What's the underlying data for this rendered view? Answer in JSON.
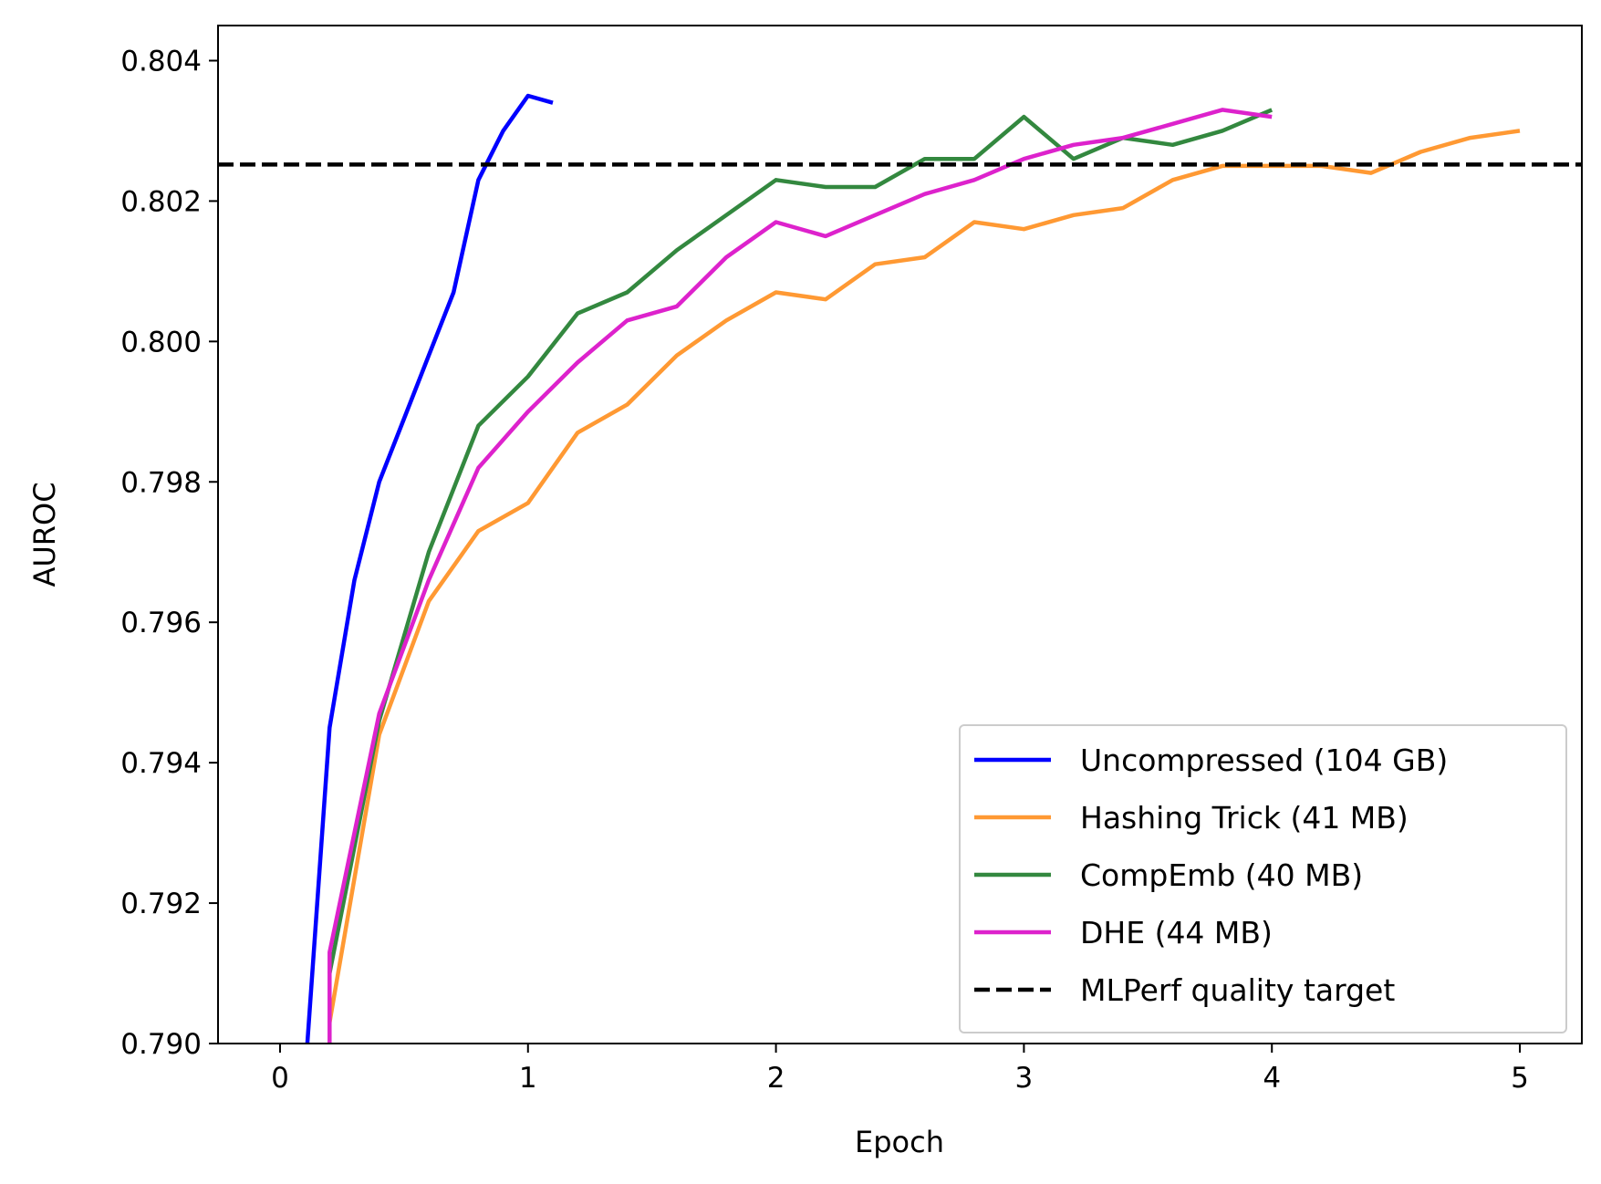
{
  "chart_data": {
    "type": "line",
    "title": "",
    "xlabel": "Epoch",
    "ylabel": "AUROC",
    "xlim": [
      -0.25,
      5.25
    ],
    "ylim": [
      0.79,
      0.8045
    ],
    "xticks": [
      0,
      1,
      2,
      3,
      4,
      5
    ],
    "xtick_labels": [
      "0",
      "1",
      "2",
      "3",
      "4",
      "5"
    ],
    "yticks": [
      0.79,
      0.792,
      0.794,
      0.796,
      0.798,
      0.8,
      0.802,
      0.804
    ],
    "ytick_labels": [
      "0.790",
      "0.792",
      "0.794",
      "0.796",
      "0.798",
      "0.800",
      "0.802",
      "0.804"
    ],
    "grid": false,
    "legend_position": "lower-right",
    "series": [
      {
        "name": "Uncompressed (104 GB)",
        "color": "#0000ff",
        "style": "solid",
        "x": [
          0.11,
          0.2,
          0.3,
          0.4,
          0.5,
          0.6,
          0.7,
          0.8,
          0.9,
          1.0,
          1.1
        ],
        "y": [
          0.79,
          0.7945,
          0.7966,
          0.798,
          0.7989,
          0.7998,
          0.8007,
          0.8023,
          0.803,
          0.8035,
          0.8034
        ]
      },
      {
        "name": "Hashing Trick (41 MB)",
        "color": "#ff9933",
        "style": "solid",
        "x": [
          0.2,
          0.4,
          0.6,
          0.8,
          1.0,
          1.2,
          1.4,
          1.6,
          1.8,
          2.0,
          2.2,
          2.4,
          2.6,
          2.8,
          3.0,
          3.2,
          3.4,
          3.6,
          3.8,
          4.0,
          4.2,
          4.4,
          4.6,
          4.8,
          5.0
        ],
        "y": [
          0.7903,
          0.7944,
          0.7963,
          0.7973,
          0.7977,
          0.7987,
          0.7991,
          0.7998,
          0.8003,
          0.8007,
          0.8006,
          0.8011,
          0.8012,
          0.8017,
          0.8016,
          0.8018,
          0.8019,
          0.8023,
          0.8025,
          0.8025,
          0.8025,
          0.8024,
          0.8027,
          0.8029,
          0.803
        ]
      },
      {
        "name": "CompEmb (40 MB)",
        "color": "#33883f",
        "style": "solid",
        "x": [
          0.2,
          0.4,
          0.6,
          0.8,
          1.0,
          1.2,
          1.4,
          1.6,
          1.8,
          2.0,
          2.2,
          2.4,
          2.6,
          2.8,
          3.0,
          3.2,
          3.4,
          3.6,
          3.8,
          4.0
        ],
        "y": [
          0.791,
          0.7946,
          0.797,
          0.7988,
          0.7995,
          0.8004,
          0.8007,
          0.8013,
          0.8018,
          0.8023,
          0.8022,
          0.8022,
          0.8026,
          0.8026,
          0.8032,
          0.8026,
          0.8029,
          0.8028,
          0.803,
          0.8033
        ]
      },
      {
        "name": "DHE (44 MB)",
        "color": "#dd22cc",
        "style": "solid",
        "x": [
          0.2,
          0.2,
          0.4,
          0.6,
          0.8,
          1.0,
          1.2,
          1.4,
          1.6,
          1.8,
          2.0,
          2.2,
          2.4,
          2.6,
          2.8,
          3.0,
          3.2,
          3.4,
          3.6,
          3.8,
          4.0
        ],
        "y": [
          0.79,
          0.7913,
          0.7947,
          0.7966,
          0.7982,
          0.799,
          0.7997,
          0.8003,
          0.8005,
          0.8012,
          0.8017,
          0.8015,
          0.8018,
          0.8021,
          0.8023,
          0.8026,
          0.8028,
          0.8029,
          0.8031,
          0.8033,
          0.8032
        ]
      }
    ],
    "reference_lines": [
      {
        "name": "MLPerf quality target",
        "color": "#000000",
        "style": "dashed",
        "y": 0.80252
      }
    ]
  }
}
